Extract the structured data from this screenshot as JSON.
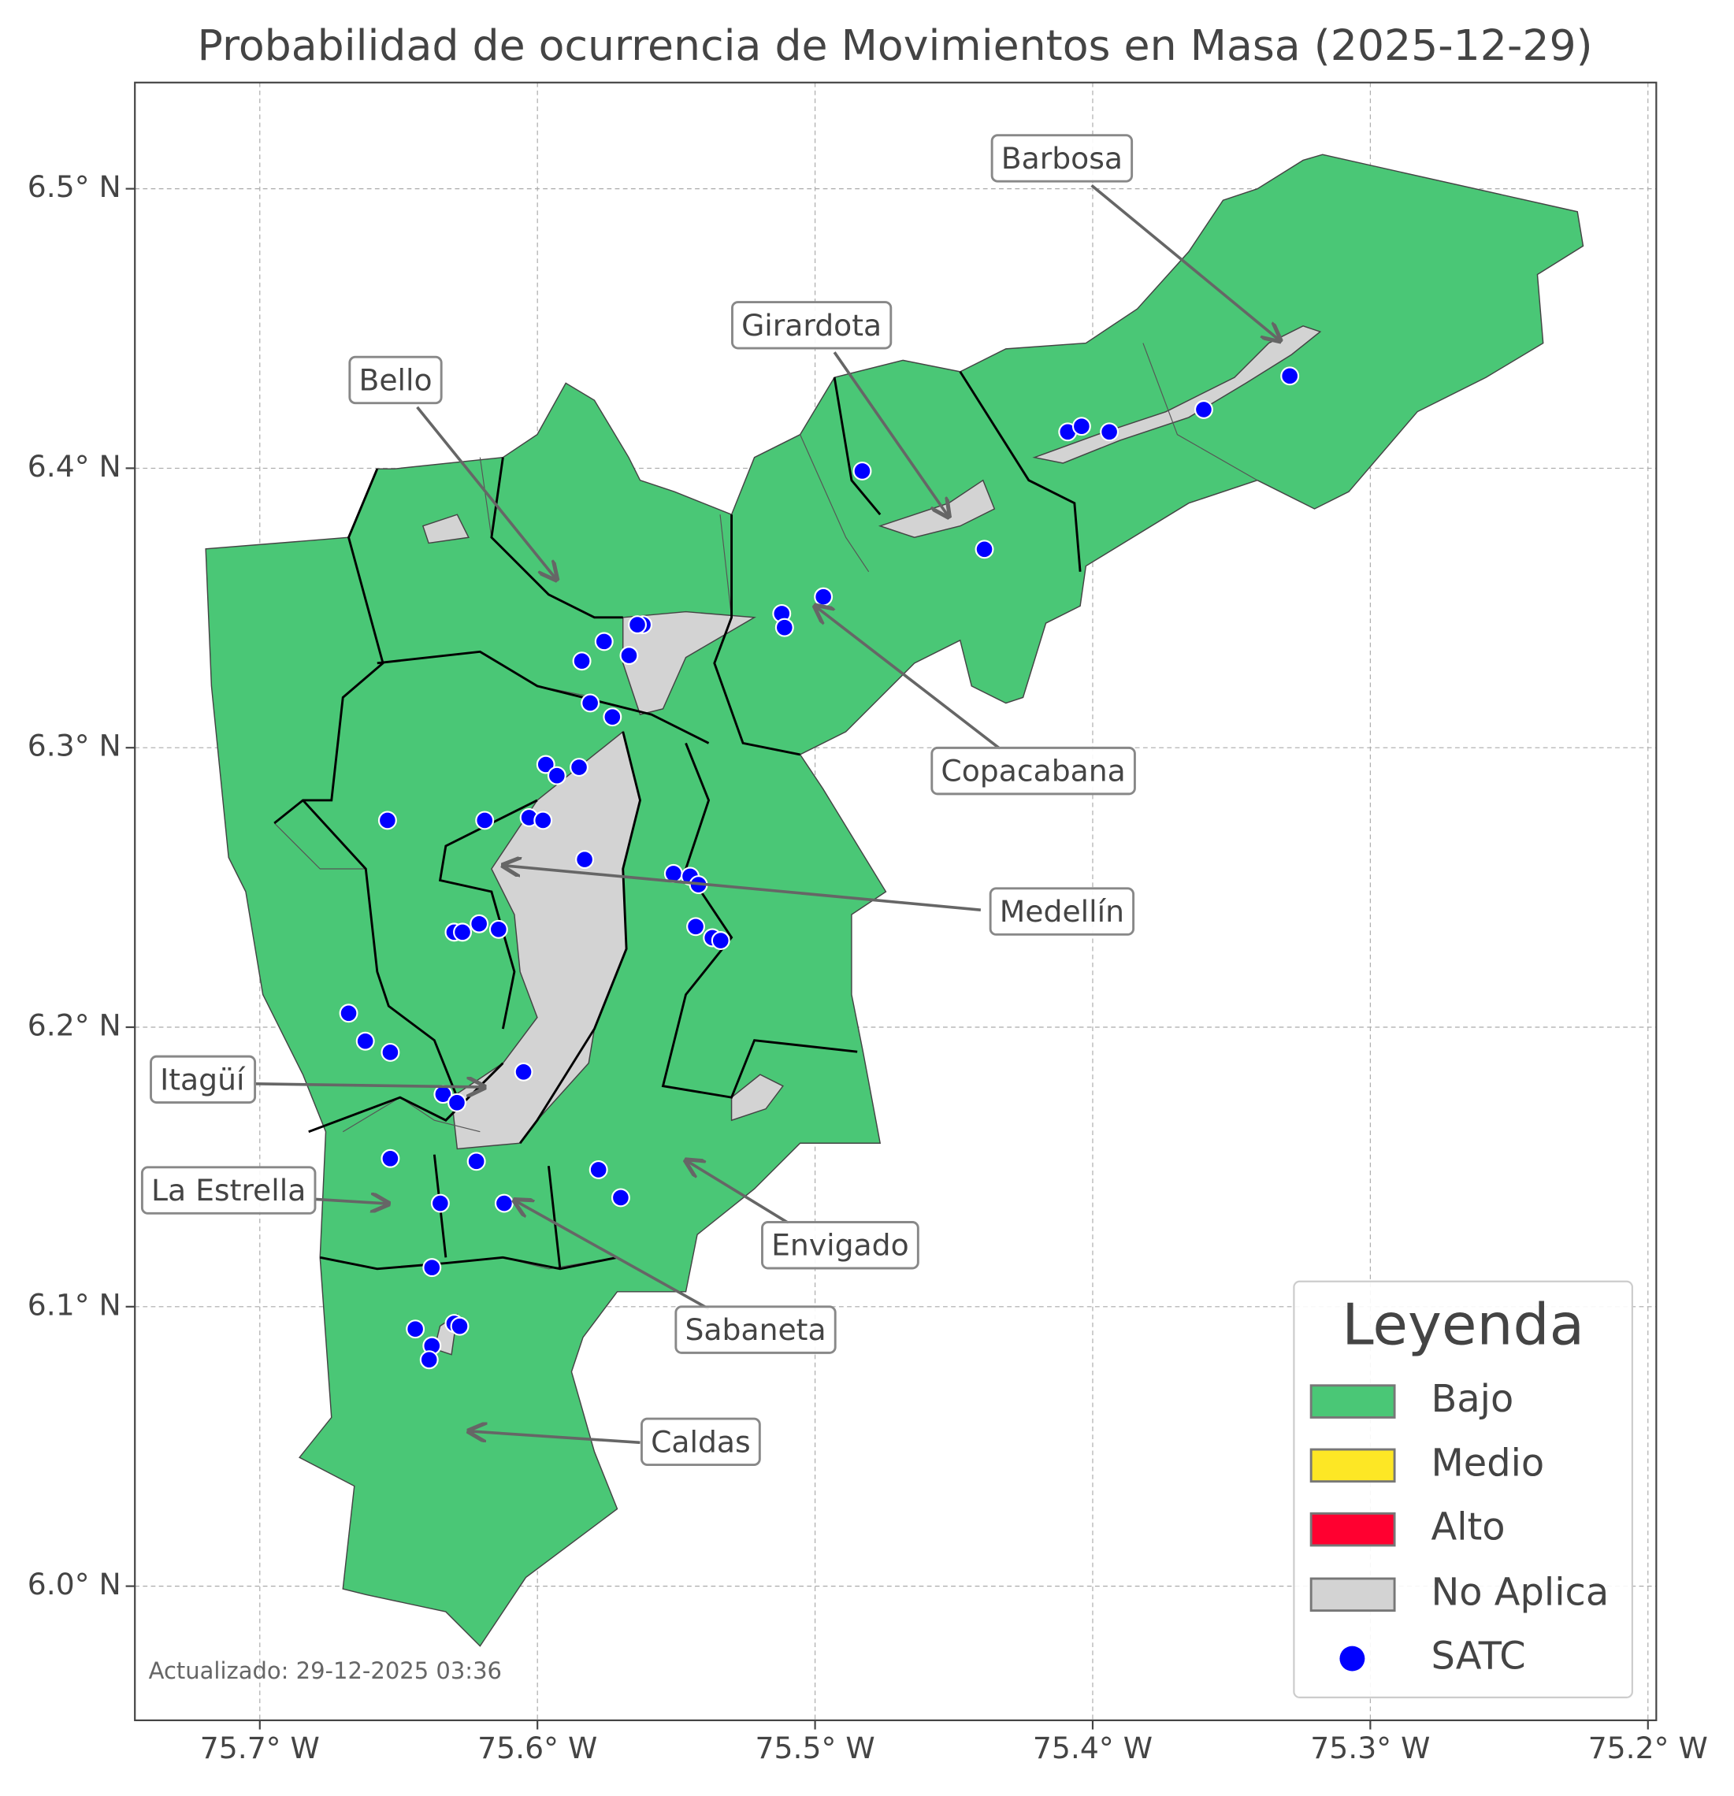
{
  "chart_data": {
    "type": "scatter",
    "title": "Probabilidad de ocurrencia de Movimientos en Masa (2025-12-29)",
    "xlim": [
      -75.745,
      -75.197
    ],
    "ylim": [
      5.952,
      6.538
    ],
    "xticks": [
      {
        "value": -75.7,
        "label": "75.7° W"
      },
      {
        "value": -75.6,
        "label": "75.6° W"
      },
      {
        "value": -75.5,
        "label": "75.5° W"
      },
      {
        "value": -75.4,
        "label": "75.4° W"
      },
      {
        "value": -75.3,
        "label": "75.3° W"
      },
      {
        "value": -75.2,
        "label": "75.2° W"
      }
    ],
    "yticks": [
      {
        "value": 6.0,
        "label": "6.0° N"
      },
      {
        "value": 6.1,
        "label": "6.1° N"
      },
      {
        "value": 6.2,
        "label": "6.2° N"
      },
      {
        "value": 6.3,
        "label": "6.3° N"
      },
      {
        "value": 6.4,
        "label": "6.4° N"
      },
      {
        "value": 6.5,
        "label": "6.5° N"
      }
    ],
    "grid": true,
    "legend": {
      "title": "Leyenda",
      "position": "lower right",
      "categories": [
        {
          "name": "Bajo",
          "color": "#4ac776"
        },
        {
          "name": "Medio",
          "color": "#fde725"
        },
        {
          "name": "Alto",
          "color": "#ff0030"
        },
        {
          "name": "No Aplica",
          "color": "#d3d3d3"
        }
      ]
    },
    "series": [
      {
        "name": "SATC",
        "color": "#0000ff",
        "x": [
          -75.483,
          -75.409,
          -75.404,
          -75.394,
          -75.36,
          -75.329,
          -75.439,
          -75.497,
          -75.512,
          -75.511,
          -75.562,
          -75.564,
          -75.576,
          -75.584,
          -75.567,
          -75.581,
          -75.573,
          -75.597,
          -75.585,
          -75.593,
          -75.654,
          -75.619,
          -75.603,
          -75.598,
          -75.583,
          -75.551,
          -75.545,
          -75.542,
          -75.543,
          -75.537,
          -75.534,
          -75.621,
          -75.63,
          -75.627,
          -75.614,
          -75.668,
          -75.662,
          -75.653,
          -75.605,
          -75.634,
          -75.629,
          -75.653,
          -75.622,
          -75.578,
          -75.57,
          -75.635,
          -75.612,
          -75.638,
          -75.644,
          -75.63,
          -75.628,
          -75.638,
          -75.639
        ],
        "values": [
          6.399,
          6.413,
          6.415,
          6.413,
          6.421,
          6.433,
          6.371,
          6.354,
          6.348,
          6.343,
          6.344,
          6.344,
          6.338,
          6.331,
          6.333,
          6.316,
          6.311,
          6.294,
          6.293,
          6.29,
          6.274,
          6.274,
          6.275,
          6.274,
          6.26,
          6.255,
          6.254,
          6.251,
          6.236,
          6.232,
          6.231,
          6.237,
          6.234,
          6.234,
          6.235,
          6.205,
          6.195,
          6.191,
          6.184,
          6.176,
          6.173,
          6.153,
          6.152,
          6.149,
          6.139,
          6.137,
          6.137,
          6.114,
          6.092,
          6.094,
          6.093,
          6.086,
          6.081
        ]
      }
    ],
    "annotations": [
      "Barbosa",
      "Girardota",
      "Bello",
      "Copacabana",
      "Medellín",
      "Itagüí",
      "La Estrella",
      "Envigado",
      "Sabaneta",
      "Caldas"
    ],
    "footnote": "Actualizado: 29-12-2025 03:36"
  }
}
